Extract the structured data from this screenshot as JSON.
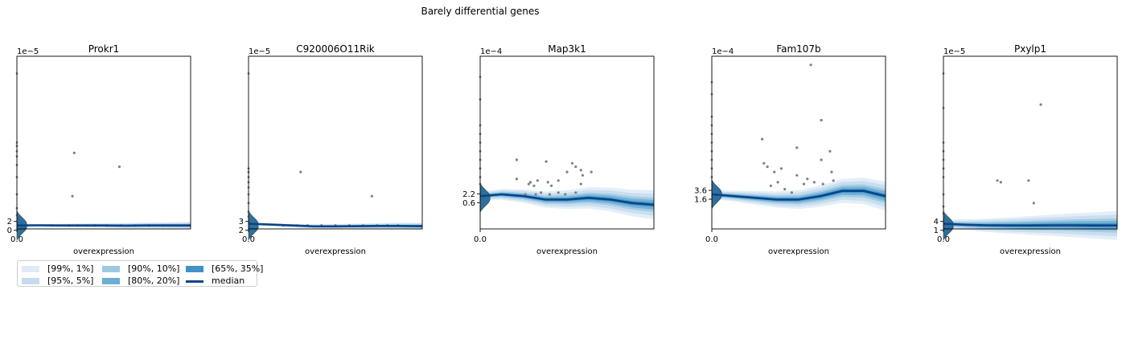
{
  "figure": {
    "suptitle": "Barely differential genes"
  },
  "colors": {
    "band_99_1": "#deebf7",
    "band_95_5": "#c6dbef",
    "band_90_10": "#9ecae1",
    "band_80_20": "#6baed6",
    "band_65_35": "#4292c6",
    "median": "#08458a",
    "points": "#808080",
    "violin": "#2f6f99"
  },
  "legend": {
    "placement": "below-left",
    "items": [
      {
        "label": "[99%, 1%]",
        "color": "#deebf7",
        "kind": "band"
      },
      {
        "label": "[95%, 5%]",
        "color": "#c6dbef",
        "kind": "band"
      },
      {
        "label": "[90%, 10%]",
        "color": "#9ecae1",
        "kind": "band"
      },
      {
        "label": "[80%, 20%]",
        "color": "#6baed6",
        "kind": "band"
      },
      {
        "label": "[65%, 35%]",
        "color": "#4292c6",
        "kind": "band"
      },
      {
        "label": "median",
        "color": "#08458a",
        "kind": "line"
      }
    ]
  },
  "chart_data": [
    {
      "type": "scatter",
      "title": "Prokr1",
      "xlabel": "overexpression",
      "x_tick_labels": [
        "0.0"
      ],
      "y_tick_labels": [
        "2",
        "0"
      ],
      "y_offset": "1e−5",
      "median_level": 0.02,
      "median_curve": [
        0.02,
        0.021,
        0.02,
        0.02,
        0.02,
        0.019,
        0.02,
        0.02,
        0.02
      ],
      "violin_points": [
        0.9,
        0.5,
        0.48,
        0.45,
        0.42,
        0.37,
        0.3,
        0.2,
        0.12,
        0.08
      ],
      "points": [
        [
          0.32,
          0.19
        ],
        [
          0.33,
          0.44
        ],
        [
          0.59,
          0.36
        ],
        [
          0.2,
          0.02
        ],
        [
          0.3,
          0.02
        ],
        [
          0.35,
          0.02
        ],
        [
          0.4,
          0.02
        ],
        [
          0.45,
          0.02
        ],
        [
          0.52,
          0.02
        ],
        [
          0.6,
          0.02
        ],
        [
          0.68,
          0.02
        ],
        [
          0.76,
          0.02
        ],
        [
          0.84,
          0.02
        ]
      ]
    },
    {
      "type": "scatter",
      "title": "C920006O11Rik",
      "xlabel": "overexpression",
      "x_tick_labels": [
        "0.0"
      ],
      "y_tick_labels": [
        "3",
        "2"
      ],
      "y_offset": "1e−5",
      "median_level": 0.02,
      "median_curve": [
        0.03,
        0.025,
        0.02,
        0.015,
        0.015,
        0.016,
        0.017,
        0.017,
        0.016
      ],
      "violin_points": [
        0.9,
        0.35,
        0.33,
        0.3,
        0.27,
        0.24,
        0.2,
        0.15,
        0.1,
        0.07
      ],
      "points": [
        [
          0.3,
          0.33
        ],
        [
          0.71,
          0.19
        ],
        [
          0.2,
          0.02
        ],
        [
          0.28,
          0.02
        ],
        [
          0.34,
          0.02
        ],
        [
          0.42,
          0.02
        ],
        [
          0.5,
          0.02
        ],
        [
          0.58,
          0.02
        ],
        [
          0.66,
          0.02
        ],
        [
          0.74,
          0.02
        ],
        [
          0.8,
          0.02
        ],
        [
          0.86,
          0.02
        ]
      ]
    },
    {
      "type": "scatter",
      "title": "Map3k1",
      "xlabel": "overexpression",
      "x_tick_labels": [
        "0.0"
      ],
      "y_tick_labels": [
        "2.2",
        "0.6"
      ],
      "y_offset": "1e−4",
      "median_level": 0.18,
      "median_curve": [
        0.19,
        0.2,
        0.19,
        0.17,
        0.17,
        0.18,
        0.17,
        0.15,
        0.14
      ],
      "violin_points": [
        0.88,
        0.75,
        0.6,
        0.55,
        0.5,
        0.45,
        0.4,
        0.35,
        0.3,
        0.26
      ],
      "points": [
        [
          0.21,
          0.4
        ],
        [
          0.21,
          0.29
        ],
        [
          0.28,
          0.26
        ],
        [
          0.29,
          0.27
        ],
        [
          0.31,
          0.25
        ],
        [
          0.33,
          0.28
        ],
        [
          0.38,
          0.39
        ],
        [
          0.39,
          0.27
        ],
        [
          0.41,
          0.25
        ],
        [
          0.45,
          0.28
        ],
        [
          0.5,
          0.33
        ],
        [
          0.53,
          0.38
        ],
        [
          0.55,
          0.36
        ],
        [
          0.58,
          0.34
        ],
        [
          0.59,
          0.31
        ],
        [
          0.64,
          0.33
        ],
        [
          0.26,
          0.2
        ],
        [
          0.32,
          0.2
        ],
        [
          0.35,
          0.21
        ],
        [
          0.4,
          0.2
        ],
        [
          0.45,
          0.21
        ],
        [
          0.49,
          0.2
        ],
        [
          0.55,
          0.21
        ],
        [
          0.58,
          0.26
        ]
      ]
    },
    {
      "type": "scatter",
      "title": "Fam107b",
      "xlabel": "overexpression",
      "x_tick_labels": [
        "0.0"
      ],
      "y_tick_labels": [
        "3.6",
        "1.6"
      ],
      "y_offset": "1e−4",
      "median_level": 0.2,
      "median_curve": [
        0.2,
        0.19,
        0.18,
        0.17,
        0.17,
        0.19,
        0.22,
        0.22,
        0.19
      ],
      "violin_points": [
        0.85,
        0.78,
        0.65,
        0.6,
        0.55,
        0.5,
        0.45,
        0.4,
        0.35,
        0.3
      ],
      "points": [
        [
          0.57,
          0.95
        ],
        [
          0.63,
          0.63
        ],
        [
          0.29,
          0.52
        ],
        [
          0.49,
          0.47
        ],
        [
          0.3,
          0.38
        ],
        [
          0.32,
          0.36
        ],
        [
          0.36,
          0.33
        ],
        [
          0.4,
          0.35
        ],
        [
          0.49,
          0.31
        ],
        [
          0.55,
          0.29
        ],
        [
          0.63,
          0.4
        ],
        [
          0.68,
          0.45
        ],
        [
          0.69,
          0.33
        ],
        [
          0.34,
          0.25
        ],
        [
          0.38,
          0.27
        ],
        [
          0.42,
          0.23
        ],
        [
          0.46,
          0.21
        ],
        [
          0.53,
          0.26
        ],
        [
          0.59,
          0.27
        ],
        [
          0.64,
          0.26
        ],
        [
          0.7,
          0.28
        ]
      ]
    },
    {
      "type": "scatter",
      "title": "Pxylp1",
      "xlabel": "overexpression",
      "x_tick_labels": [
        "0.0"
      ],
      "y_tick_labels": [
        "4",
        "1"
      ],
      "y_offset": "1e−5",
      "median_level": 0.02,
      "median_curve": [
        0.03,
        0.024,
        0.021,
        0.02,
        0.02,
        0.021,
        0.021,
        0.02,
        0.02
      ],
      "violin_points": [
        0.9,
        0.7,
        0.5,
        0.45,
        0.4,
        0.35,
        0.3,
        0.2,
        0.13,
        0.09
      ],
      "points": [
        [
          0.56,
          0.72
        ],
        [
          0.31,
          0.28
        ],
        [
          0.33,
          0.27
        ],
        [
          0.49,
          0.28
        ],
        [
          0.52,
          0.15
        ],
        [
          0.21,
          0.02
        ],
        [
          0.29,
          0.02
        ],
        [
          0.36,
          0.02
        ],
        [
          0.44,
          0.02
        ],
        [
          0.52,
          0.02
        ],
        [
          0.6,
          0.02
        ],
        [
          0.68,
          0.02
        ],
        [
          0.76,
          0.02
        ],
        [
          0.84,
          0.02
        ]
      ]
    }
  ]
}
